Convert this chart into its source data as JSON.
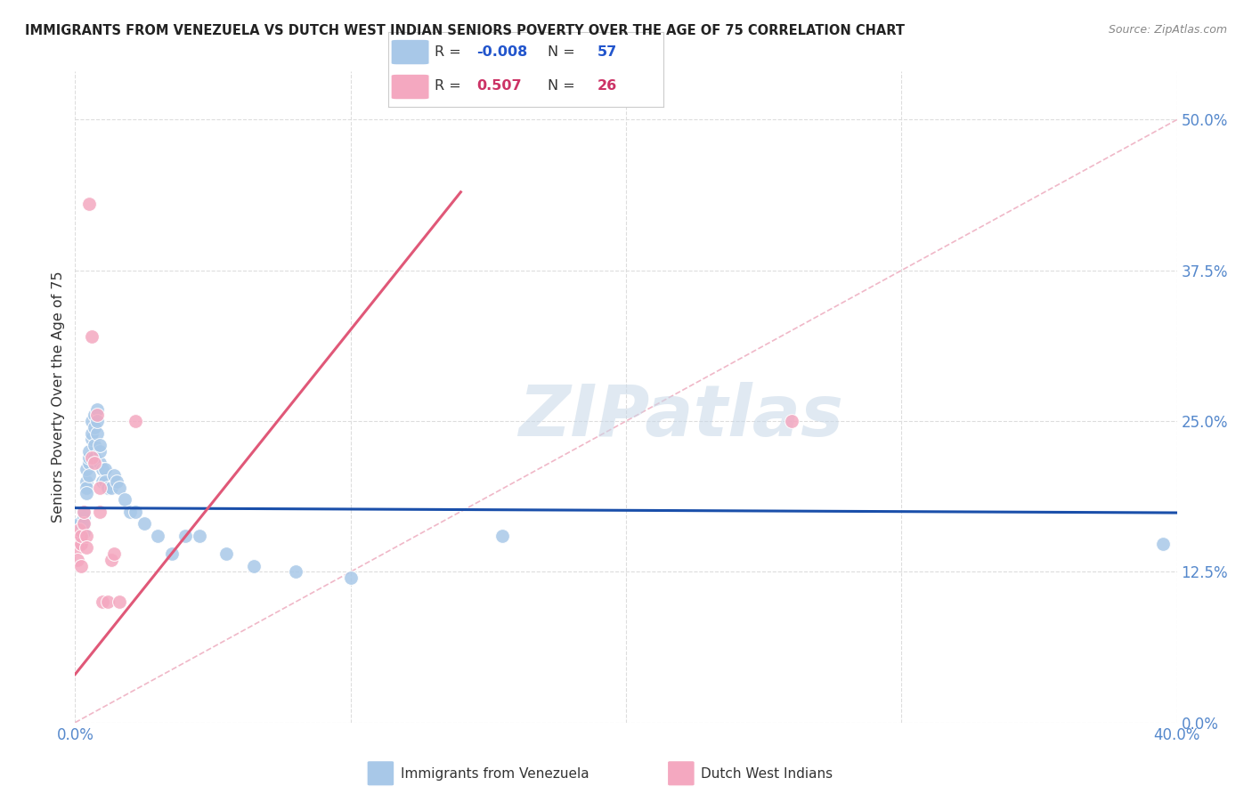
{
  "title": "IMMIGRANTS FROM VENEZUELA VS DUTCH WEST INDIAN SENIORS POVERTY OVER THE AGE OF 75 CORRELATION CHART",
  "source": "Source: ZipAtlas.com",
  "ylabel": "Seniors Poverty Over the Age of 75",
  "ytick_values": [
    0.0,
    0.125,
    0.25,
    0.375,
    0.5
  ],
  "ytick_labels": [
    "0.0%",
    "12.5%",
    "25.0%",
    "37.5%",
    "50.0%"
  ],
  "xlim": [
    0.0,
    0.4
  ],
  "ylim": [
    0.0,
    0.54
  ],
  "watermark_text": "ZIPatlas",
  "blue_scatter_x": [
    0.0008,
    0.001,
    0.001,
    0.0015,
    0.0015,
    0.002,
    0.002,
    0.002,
    0.0025,
    0.003,
    0.003,
    0.003,
    0.003,
    0.004,
    0.004,
    0.004,
    0.004,
    0.005,
    0.005,
    0.005,
    0.005,
    0.006,
    0.006,
    0.006,
    0.007,
    0.007,
    0.007,
    0.007,
    0.008,
    0.008,
    0.008,
    0.009,
    0.009,
    0.009,
    0.01,
    0.01,
    0.011,
    0.011,
    0.012,
    0.013,
    0.014,
    0.015,
    0.016,
    0.018,
    0.02,
    0.022,
    0.025,
    0.03,
    0.035,
    0.04,
    0.045,
    0.055,
    0.065,
    0.08,
    0.1,
    0.155,
    0.395
  ],
  "blue_scatter_y": [
    0.163,
    0.15,
    0.158,
    0.165,
    0.155,
    0.148,
    0.16,
    0.155,
    0.162,
    0.158,
    0.17,
    0.175,
    0.165,
    0.2,
    0.195,
    0.21,
    0.19,
    0.215,
    0.22,
    0.225,
    0.205,
    0.235,
    0.25,
    0.24,
    0.255,
    0.245,
    0.23,
    0.22,
    0.26,
    0.24,
    0.25,
    0.215,
    0.225,
    0.23,
    0.21,
    0.2,
    0.21,
    0.2,
    0.195,
    0.195,
    0.205,
    0.2,
    0.195,
    0.185,
    0.175,
    0.175,
    0.165,
    0.155,
    0.14,
    0.155,
    0.155,
    0.14,
    0.13,
    0.125,
    0.12,
    0.155,
    0.148
  ],
  "pink_scatter_x": [
    0.0005,
    0.001,
    0.001,
    0.001,
    0.0015,
    0.002,
    0.002,
    0.002,
    0.003,
    0.003,
    0.004,
    0.004,
    0.005,
    0.006,
    0.006,
    0.007,
    0.008,
    0.009,
    0.009,
    0.01,
    0.012,
    0.013,
    0.014,
    0.016,
    0.022,
    0.26
  ],
  "pink_scatter_y": [
    0.155,
    0.15,
    0.145,
    0.135,
    0.16,
    0.148,
    0.155,
    0.13,
    0.165,
    0.175,
    0.155,
    0.145,
    0.43,
    0.32,
    0.22,
    0.215,
    0.255,
    0.195,
    0.175,
    0.1,
    0.1,
    0.135,
    0.14,
    0.1,
    0.25,
    0.25
  ],
  "blue_line_x": [
    0.0,
    0.4
  ],
  "blue_line_y": [
    0.178,
    0.174
  ],
  "pink_line_x": [
    0.0,
    0.14
  ],
  "pink_line_y": [
    0.04,
    0.44
  ],
  "dashed_line_x": [
    0.0,
    0.4
  ],
  "dashed_line_y": [
    0.0,
    0.5
  ],
  "bg_color": "#ffffff",
  "blue_scatter_color": "#a8c8e8",
  "pink_scatter_color": "#f4a8c0",
  "blue_line_color": "#1a4faa",
  "pink_line_color": "#e05878",
  "dashed_line_color": "#f0b8c8",
  "grid_color": "#dddddd",
  "axis_label_color": "#5588cc",
  "legend_r1": "-0.008",
  "legend_n1": "57",
  "legend_r2": "0.507",
  "legend_n2": "26",
  "legend_color_blue": "#2255cc",
  "legend_color_pink": "#cc3366",
  "legend_text_color": "#333333",
  "bottom_legend_label1": "Immigrants from Venezuela",
  "bottom_legend_label2": "Dutch West Indians"
}
